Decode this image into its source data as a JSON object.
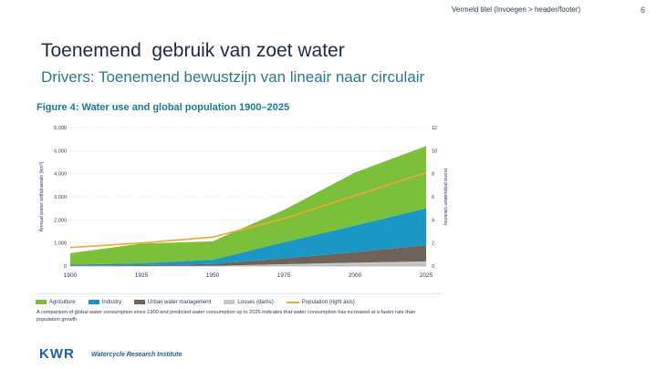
{
  "header": {
    "text": "Vermeld titel (Invoegen > header/footer)",
    "page_number": "6"
  },
  "slide": {
    "title": "Toenemend  gebruik van zoet water",
    "subtitle": "Drivers: Toenemend bewustzijn van lineair naar circulair"
  },
  "figure": {
    "title": "Figure 4: Water use and global population 1900–2025",
    "caption": "A comparison of global water consumption since 1900 and predicted water consumption up to 2025 indicates that water consumption has increased at a faster rate than population growth",
    "y_left_label": "Annual water withdrawals (km³)",
    "y_right_label": "World population (billions)",
    "legend": [
      {
        "label": "Agriculture",
        "color": "#7bbf3a",
        "kind": "swatch"
      },
      {
        "label": "Industry",
        "color": "#1a97c5",
        "kind": "swatch"
      },
      {
        "label": "Urban water management",
        "color": "#6f6259",
        "kind": "swatch"
      },
      {
        "label": "Losses (dams)",
        "color": "#c9c4c8",
        "kind": "swatch"
      },
      {
        "label": "Population (right axis)",
        "color": "#f0a830",
        "kind": "line"
      }
    ]
  },
  "chart_data": {
    "type": "area",
    "stacked": true,
    "x": [
      1900,
      1925,
      1950,
      1975,
      2000,
      2025
    ],
    "series": [
      {
        "name": "Losses (dams)",
        "color": "#c9c4c8",
        "values": [
          0,
          0,
          10,
          80,
          150,
          200
        ]
      },
      {
        "name": "Urban water management",
        "color": "#6f6259",
        "values": [
          20,
          40,
          80,
          250,
          450,
          700
        ]
      },
      {
        "name": "Industry",
        "color": "#1a97c5",
        "values": [
          40,
          80,
          180,
          700,
          1150,
          1600
        ]
      },
      {
        "name": "Agriculture",
        "color": "#7bbf3a",
        "values": [
          500,
          850,
          800,
          1400,
          2300,
          2700
        ]
      }
    ],
    "population": {
      "name": "Population (right axis)",
      "color": "#f0a830",
      "values": [
        1.6,
        2.0,
        2.5,
        4.1,
        6.1,
        8.1
      ]
    },
    "y_left_ticks": [
      "0",
      "1,000",
      "2,000",
      "3,000",
      "4,000",
      "5,000",
      "6,000"
    ],
    "y_right_ticks": [
      "0",
      "2",
      "4",
      "6",
      "8",
      "10",
      "12"
    ],
    "x_ticks": [
      "1900",
      "1925",
      "1950",
      "1975",
      "2000",
      "2025"
    ],
    "ylim": [
      0,
      6000
    ],
    "y2lim": [
      0,
      12
    ],
    "xlim": [
      1900,
      2025
    ],
    "grid": "dotted-horizontal"
  },
  "logo": {
    "name": "KWR",
    "tagline": "Watercycle Research Institute"
  }
}
